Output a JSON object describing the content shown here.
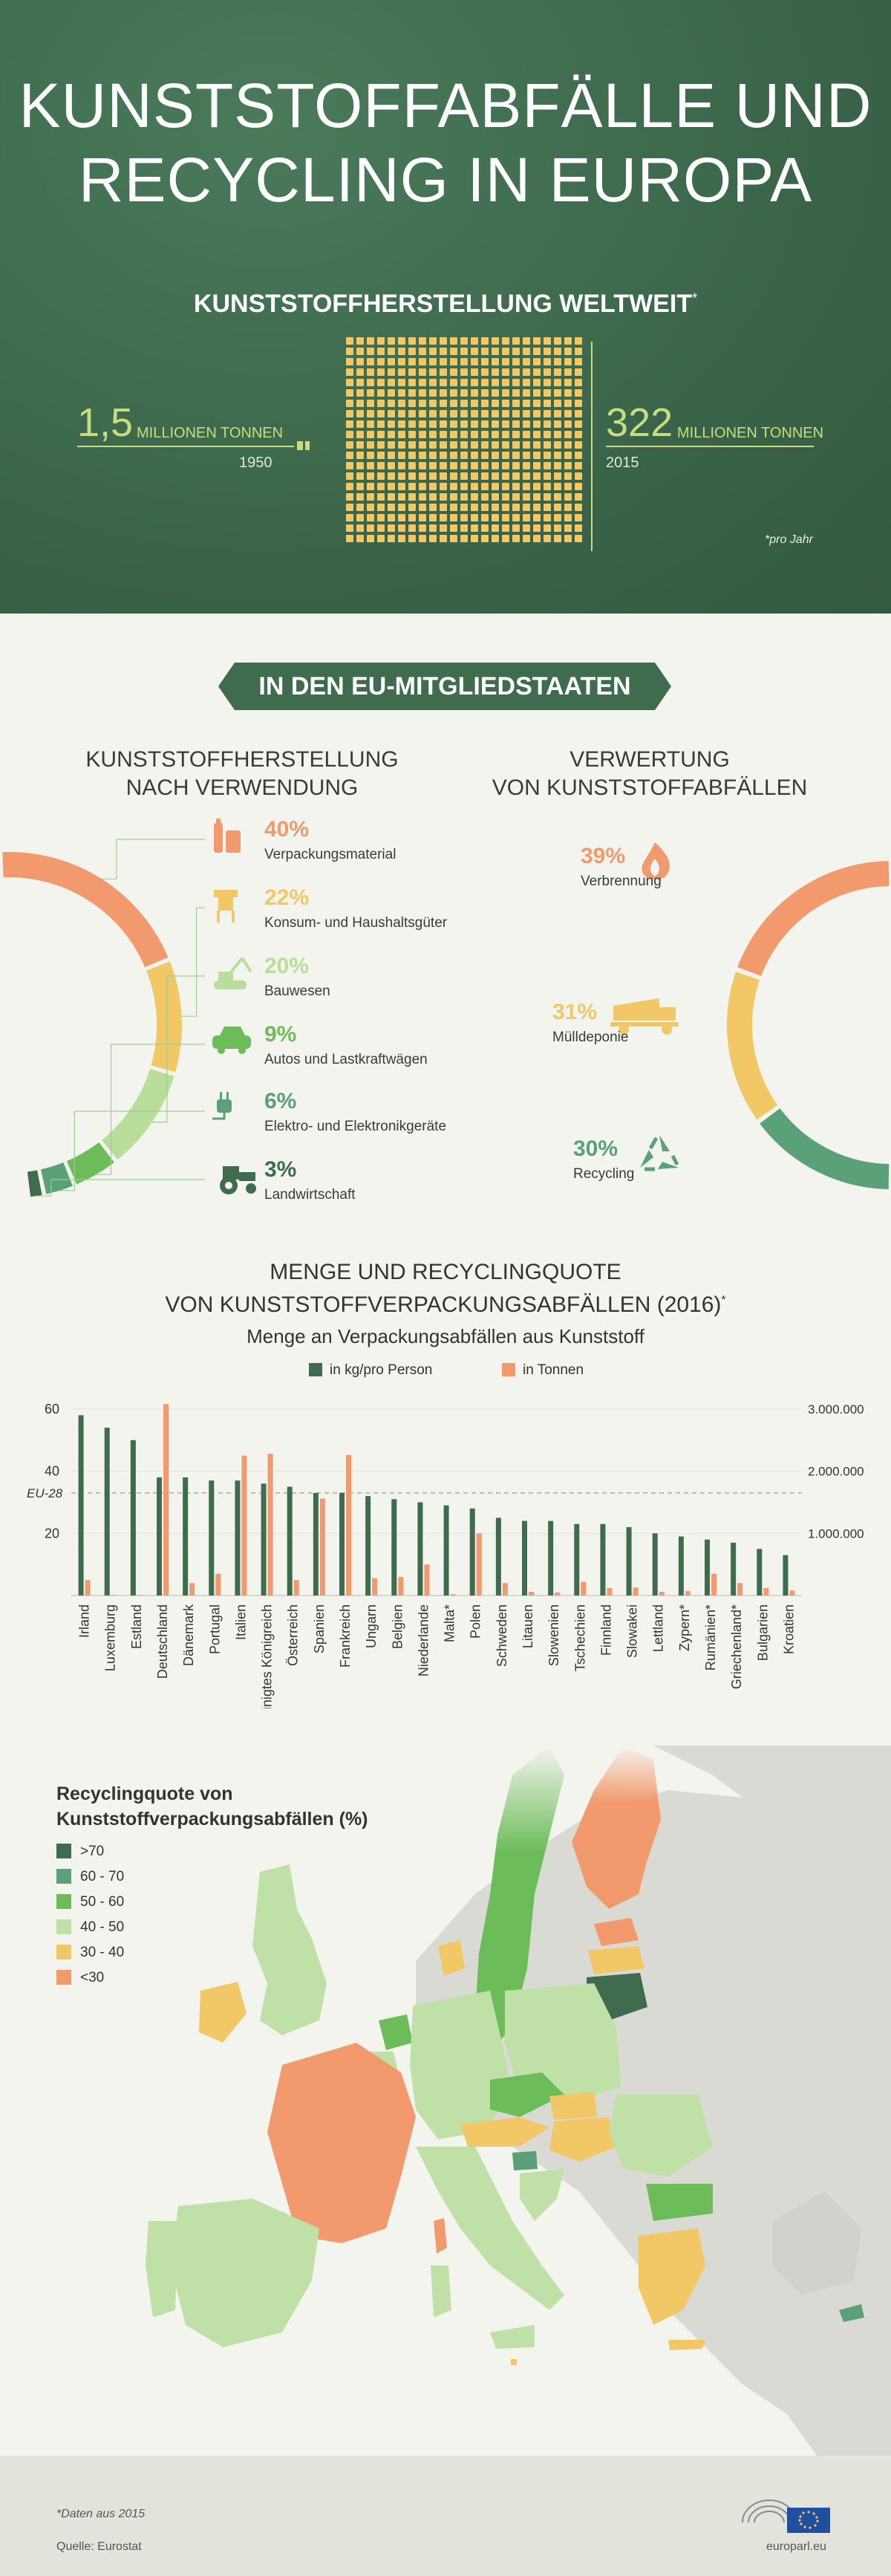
{
  "hero": {
    "title_line1": "KUNSTSTOFFABFÄLLE UND",
    "title_line2": "RECYCLING IN EUROPA",
    "subtitle": "KUNSTSTOFFHERSTELLUNG WELTWEIT",
    "subtitle_mark": "*",
    "left_value": "1,5",
    "left_unit": "MILLIONEN TONNEN",
    "left_year": "1950",
    "right_value": "322",
    "right_unit": "MILLIONEN TONNEN",
    "right_year": "2015",
    "note": "*pro Jahr"
  },
  "eu": {
    "banner": "IN DEN EU-MITGLIEDSTAATEN",
    "production_heading_1": "KUNSTSTOFFHERSTELLUNG",
    "production_heading_2": "NACH VERWENDUNG",
    "recovery_heading_1": "VERWERTUNG",
    "recovery_heading_2": "VON KUNSTSTOFFABFÄLLEN",
    "usage": [
      {
        "pct": "40%",
        "label": "Verpackungsmaterial",
        "icon": "bottle-icon",
        "color": "#f29a6e",
        "value": 40
      },
      {
        "pct": "22%",
        "label": "Konsum- und Haushaltsgüter",
        "icon": "chair-icon",
        "color": "#f2c866",
        "value": 22
      },
      {
        "pct": "20%",
        "label": "Bauwesen",
        "icon": "excavator-icon",
        "color": "#b9dd9a",
        "value": 20
      },
      {
        "pct": "9%",
        "label": "Autos und Lastkraftwägen",
        "icon": "car-icon",
        "color": "#6cbd5a",
        "value": 9
      },
      {
        "pct": "6%",
        "label": "Elektro- und Elektronikgeräte",
        "icon": "plug-icon",
        "color": "#5aa078",
        "value": 6
      },
      {
        "pct": "3%",
        "label": "Landwirtschaft",
        "icon": "tractor-icon",
        "color": "#3f6b4f",
        "value": 3
      }
    ],
    "recovery": [
      {
        "pct": "39%",
        "label": "Verbrennung",
        "icon": "flame-icon",
        "color": "#f29a6e",
        "value": 39
      },
      {
        "pct": "31%",
        "label": "Mülldeponie",
        "icon": "dump-truck-icon",
        "color": "#f2c866",
        "value": 31
      },
      {
        "pct": "30%",
        "label": "Recycling",
        "icon": "recycle-icon",
        "color": "#5aa078",
        "value": 30
      }
    ]
  },
  "chart_data": {
    "type": "bar",
    "title_line1": "MENGE UND RECYCLINGQUOTE",
    "title_line2": "VON KUNSTSTOFFVERPACKUNGSABFÄLLEN (2016)",
    "title_mark": "*",
    "subtitle": "Menge an Verpackungsabfällen aus Kunststoff",
    "categories": [
      "Irland",
      "Luxemburg",
      "Estland",
      "Deutschland",
      "Dänemark",
      "Portugal",
      "Italien",
      "Vereinigtes Königreich",
      "Österreich",
      "Spanien",
      "Frankreich",
      "Ungarn",
      "Belgien",
      "Niederlande",
      "Malta*",
      "Polen",
      "Schweden",
      "Litauen",
      "Slowenien",
      "Tschechien",
      "Finnland",
      "Slowakei",
      "Lettland",
      "Zypern*",
      "Rumänien*",
      "Griechenland*",
      "Bulgarien",
      "Kroatien"
    ],
    "series": [
      {
        "name": "in kg/pro Person",
        "color": "#3f6b4f",
        "axis": "left",
        "values": [
          58,
          54,
          50,
          38,
          38,
          37,
          37,
          36,
          35,
          33,
          33,
          32,
          31,
          30,
          29,
          28,
          25,
          24,
          24,
          23,
          23,
          22,
          20,
          19,
          18,
          17,
          15,
          13
        ]
      },
      {
        "name": "in Tonnen",
        "color": "#f29a6e",
        "axis": "right",
        "values": [
          250000,
          10000,
          10000,
          3080000,
          200000,
          350000,
          2250000,
          2280000,
          250000,
          1560000,
          2260000,
          280000,
          300000,
          500000,
          20000,
          1000000,
          200000,
          60000,
          50000,
          220000,
          120000,
          130000,
          60000,
          70000,
          350000,
          200000,
          120000,
          80000
        ]
      }
    ],
    "left_axis": {
      "ticks": [
        "60",
        "40",
        "20"
      ],
      "ylim": [
        0,
        65
      ]
    },
    "right_axis": {
      "ticks": [
        "3.000.000",
        "2.000.000",
        "1.000.000"
      ],
      "ylim": [
        0,
        3250000
      ]
    },
    "reference": {
      "label": "EU-28",
      "value": 33
    }
  },
  "map": {
    "legend_title_1": "Recyclingquote von",
    "legend_title_2": "Kunststoffverpackungsabfällen (%)",
    "legend": [
      {
        "label": ">70",
        "color": "#3f6b4f"
      },
      {
        "label": "60 - 70",
        "color": "#5aa078"
      },
      {
        "label": "50 - 60",
        "color": "#6cbd5a"
      },
      {
        "label": "40 - 50",
        "color": "#bfe0a6"
      },
      {
        "label": "30 - 40",
        "color": "#f2c866"
      },
      {
        "label": "<30",
        "color": "#f29a6e"
      }
    ]
  },
  "footer": {
    "note": "*Daten aus 2015",
    "source": "Quelle: Eurostat",
    "url": "europarl.eu"
  }
}
